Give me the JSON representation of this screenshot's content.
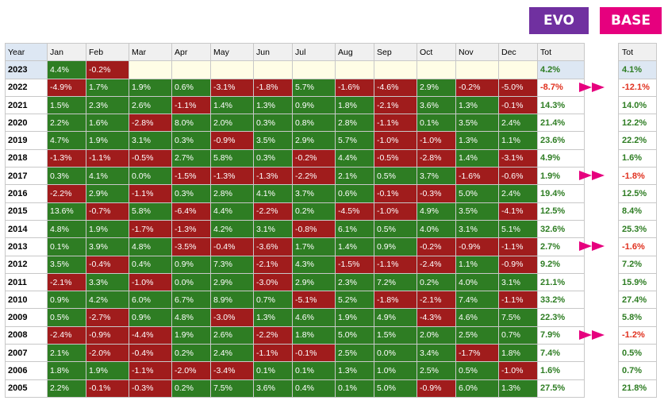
{
  "badges": {
    "evo": "EVO",
    "base": "BASE"
  },
  "colors": {
    "evo": "#7030a0",
    "base": "#e6007e",
    "positive": "#2e7d23",
    "negative": "#a01c1c"
  },
  "chart_data": {
    "type": "table",
    "columns": [
      "Year",
      "Jan",
      "Feb",
      "Mar",
      "Apr",
      "May",
      "Jun",
      "Jul",
      "Aug",
      "Sep",
      "Oct",
      "Nov",
      "Dec",
      "Tot"
    ],
    "rows": [
      {
        "year": "2023",
        "months": [
          "4.4%",
          "-0.2%",
          "",
          "",
          "",
          "",
          "",
          "",
          "",
          "",
          "",
          ""
        ],
        "tot": "4.2%",
        "base": "4.1%"
      },
      {
        "year": "2022",
        "months": [
          "-4.9%",
          "1.7%",
          "1.9%",
          "0.6%",
          "-3.1%",
          "-1.8%",
          "5.7%",
          "-1.6%",
          "-4.6%",
          "2.9%",
          "-0.2%",
          "-5.0%"
        ],
        "tot": "-8.7%",
        "base": "-12.1%"
      },
      {
        "year": "2021",
        "months": [
          "1.5%",
          "2.3%",
          "2.6%",
          "-1.1%",
          "1.4%",
          "1.3%",
          "0.9%",
          "1.8%",
          "-2.1%",
          "3.6%",
          "1.3%",
          "-0.1%"
        ],
        "tot": "14.3%",
        "base": "14.0%"
      },
      {
        "year": "2020",
        "months": [
          "2.2%",
          "1.6%",
          "-2.8%",
          "8.0%",
          "2.0%",
          "0.3%",
          "0.8%",
          "2.8%",
          "-1.1%",
          "0.1%",
          "3.5%",
          "2.4%"
        ],
        "tot": "21.4%",
        "base": "12.2%"
      },
      {
        "year": "2019",
        "months": [
          "4.7%",
          "1.9%",
          "3.1%",
          "0.3%",
          "-0.9%",
          "3.5%",
          "2.9%",
          "5.7%",
          "-1.0%",
          "-1.0%",
          "1.3%",
          "1.1%"
        ],
        "tot": "23.6%",
        "base": "22.2%"
      },
      {
        "year": "2018",
        "months": [
          "-1.3%",
          "-1.1%",
          "-0.5%",
          "2.7%",
          "5.8%",
          "0.3%",
          "-0.2%",
          "4.4%",
          "-0.5%",
          "-2.8%",
          "1.4%",
          "-3.1%"
        ],
        "tot": "4.9%",
        "base": "1.6%"
      },
      {
        "year": "2017",
        "months": [
          "0.3%",
          "4.1%",
          "0.0%",
          "-1.5%",
          "-1.3%",
          "-1.3%",
          "-2.2%",
          "2.1%",
          "0.5%",
          "3.7%",
          "-1.6%",
          "-0.6%"
        ],
        "tot": "1.9%",
        "base": "-1.8%"
      },
      {
        "year": "2016",
        "months": [
          "-2.2%",
          "2.9%",
          "-1.1%",
          "0.3%",
          "2.8%",
          "4.1%",
          "3.7%",
          "0.6%",
          "-0.1%",
          "-0.3%",
          "5.0%",
          "2.4%"
        ],
        "tot": "19.4%",
        "base": "12.5%"
      },
      {
        "year": "2015",
        "months": [
          "13.6%",
          "-0.7%",
          "5.8%",
          "-6.4%",
          "4.4%",
          "-2.2%",
          "0.2%",
          "-4.5%",
          "-1.0%",
          "4.9%",
          "3.5%",
          "-4.1%"
        ],
        "tot": "12.5%",
        "base": "8.4%"
      },
      {
        "year": "2014",
        "months": [
          "4.8%",
          "1.9%",
          "-1.7%",
          "-1.3%",
          "4.2%",
          "3.1%",
          "-0.8%",
          "6.1%",
          "0.5%",
          "4.0%",
          "3.1%",
          "5.1%"
        ],
        "tot": "32.6%",
        "base": "25.3%"
      },
      {
        "year": "2013",
        "months": [
          "0.1%",
          "3.9%",
          "4.8%",
          "-3.5%",
          "-0.4%",
          "-3.6%",
          "1.7%",
          "1.4%",
          "0.9%",
          "-0.2%",
          "-0.9%",
          "-1.1%"
        ],
        "tot": "2.7%",
        "base": "-1.6%"
      },
      {
        "year": "2012",
        "months": [
          "3.5%",
          "-0.4%",
          "0.4%",
          "0.9%",
          "7.3%",
          "-2.1%",
          "4.3%",
          "-1.5%",
          "-1.1%",
          "-2.4%",
          "1.1%",
          "-0.9%"
        ],
        "tot": "9.2%",
        "base": "7.2%"
      },
      {
        "year": "2011",
        "months": [
          "-2.1%",
          "3.3%",
          "-1.0%",
          "0.0%",
          "2.9%",
          "-3.0%",
          "2.9%",
          "2.3%",
          "7.2%",
          "0.2%",
          "4.0%",
          "3.1%"
        ],
        "tot": "21.1%",
        "base": "15.9%"
      },
      {
        "year": "2010",
        "months": [
          "0.9%",
          "4.2%",
          "6.0%",
          "6.7%",
          "8.9%",
          "0.7%",
          "-5.1%",
          "5.2%",
          "-1.8%",
          "-2.1%",
          "7.4%",
          "-1.1%"
        ],
        "tot": "33.2%",
        "base": "27.4%"
      },
      {
        "year": "2009",
        "months": [
          "0.5%",
          "-2.7%",
          "0.9%",
          "4.8%",
          "-3.0%",
          "1.3%",
          "4.6%",
          "1.9%",
          "4.9%",
          "-4.3%",
          "4.6%",
          "7.5%"
        ],
        "tot": "22.3%",
        "base": "5.8%"
      },
      {
        "year": "2008",
        "months": [
          "-2.4%",
          "-0.9%",
          "-4.4%",
          "1.9%",
          "2.6%",
          "-2.2%",
          "1.8%",
          "5.0%",
          "1.5%",
          "2.0%",
          "2.5%",
          "0.7%"
        ],
        "tot": "7.9%",
        "base": "-1.2%"
      },
      {
        "year": "2007",
        "months": [
          "2.1%",
          "-2.0%",
          "-0.4%",
          "0.2%",
          "2.4%",
          "-1.1%",
          "-0.1%",
          "2.5%",
          "0.0%",
          "3.4%",
          "-1.7%",
          "1.8%"
        ],
        "tot": "7.4%",
        "base": "0.5%"
      },
      {
        "year": "2006",
        "months": [
          "1.8%",
          "1.9%",
          "-1.1%",
          "-2.0%",
          "-3.4%",
          "0.1%",
          "0.1%",
          "1.3%",
          "1.0%",
          "2.5%",
          "0.5%",
          "-1.0%"
        ],
        "tot": "1.6%",
        "base": "0.7%"
      },
      {
        "year": "2005",
        "months": [
          "2.2%",
          "-0.1%",
          "-0.3%",
          "0.2%",
          "7.5%",
          "3.6%",
          "0.4%",
          "0.1%",
          "5.0%",
          "-0.9%",
          "6.0%",
          "1.3%"
        ],
        "tot": "27.5%",
        "base": "21.8%"
      }
    ],
    "base_header": "Tot",
    "highlighted_years": [
      "2022",
      "2017",
      "2013",
      "2008"
    ]
  }
}
